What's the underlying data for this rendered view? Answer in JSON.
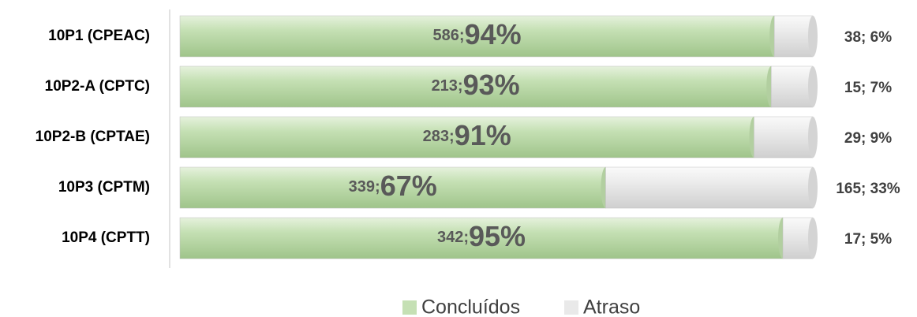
{
  "chart_data": {
    "type": "stacked_bar_100",
    "categories": [
      "10P1 (CPEAC)",
      "10P2-A (CPTC)",
      "10P2-B (CPTAE)",
      "10P3 (CPTM)",
      "10P4 (CPTT)"
    ],
    "series": [
      {
        "name": "Concluídos",
        "color": "#c5e0b4",
        "values": [
          586,
          213,
          283,
          339,
          342
        ],
        "value_labels": [
          "586;",
          "213;",
          "283;",
          "339;",
          "342;"
        ],
        "percent_labels": [
          "94%",
          "93%",
          "91%",
          "67%",
          "95%"
        ]
      },
      {
        "name": "Atraso",
        "color": "#e9e9e9",
        "values": [
          38,
          15,
          29,
          165,
          17
        ],
        "value_labels": [
          "38; 6%",
          "15; 7%",
          "29; 9%",
          "165; 33%",
          "17; 5%"
        ]
      }
    ],
    "legend": "bottom"
  }
}
